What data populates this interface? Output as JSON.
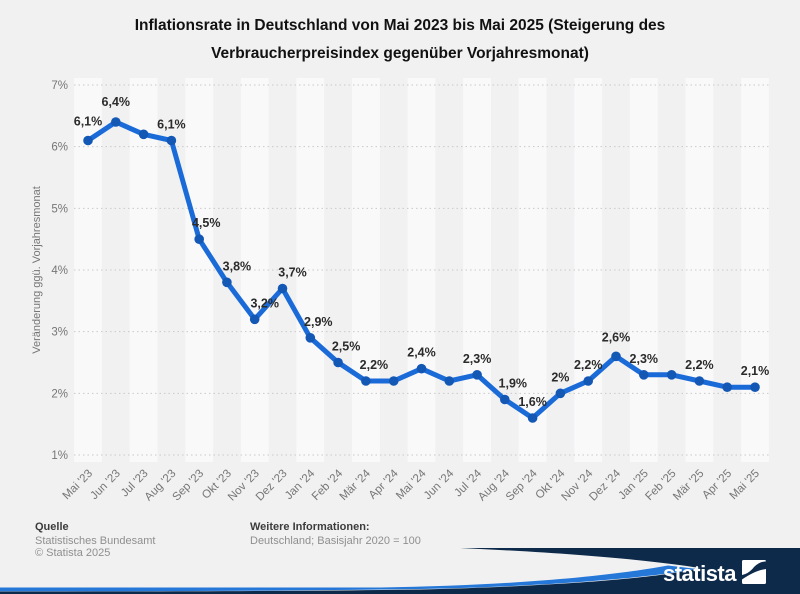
{
  "header": {
    "line1": "Inflationsrate in Deutschland von Mai 2023 bis Mai 2025 (Steigerung des",
    "line2": "Verbraucherpreisindex gegenüber Vorjahresmonat)"
  },
  "chart_data": {
    "type": "line",
    "title": "Inflationsrate in Deutschland von Mai 2023 bis Mai 2025 (Steigerung des Verbraucherpreisindex gegenüber Vorjahresmonat)",
    "xlabel": "",
    "ylabel": "Veränderung ggü. Vorjahresmonat",
    "ylim": [
      1,
      7
    ],
    "ytick_labels": [
      "1%",
      "2%",
      "3%",
      "4%",
      "5%",
      "6%",
      "7%"
    ],
    "grid": true,
    "grid_style": "dotted",
    "legend": false,
    "categories": [
      "Mai '23",
      "Jun '23",
      "Jul '23",
      "Aug '23",
      "Sep '23",
      "Okt '23",
      "Nov '23",
      "Dez '23",
      "Jan '24",
      "Feb '24",
      "Mär '24",
      "Apr '24",
      "Mai '24",
      "Jun '24",
      "Jul '24",
      "Aug '24",
      "Sep '24",
      "Okt '24",
      "Nov '24",
      "Dez '24",
      "Jan '25",
      "Feb '25",
      "Mär '25",
      "Apr '25",
      "Mai '25"
    ],
    "values": [
      6.1,
      6.4,
      6.2,
      6.1,
      4.5,
      3.8,
      3.2,
      3.7,
      2.9,
      2.5,
      2.2,
      2.2,
      2.4,
      2.2,
      2.3,
      1.9,
      1.6,
      2.0,
      2.2,
      2.6,
      2.3,
      2.3,
      2.2,
      2.1,
      2.1
    ],
    "point_labels": [
      "6,1%",
      "6,4%",
      "",
      "6,1%",
      "4,5%",
      "3,8%",
      "3,2%",
      "3,7%",
      "2,9%",
      "2,5%",
      "2,2%",
      "",
      "2,4%",
      "",
      "2,3%",
      "1,9%",
      "1,6%",
      "2%",
      "2,2%",
      "2,6%",
      "2,3%",
      "",
      "2,2%",
      "",
      "2,1%"
    ],
    "line_color": "#1a6bd8",
    "marker_color": "#1458b5",
    "gridline_color": "#c9c9c9",
    "band_color": "rgba(255,255,255,0.6)",
    "axis_text_color": "#767676",
    "label_text_color": "#2b2b2b"
  },
  "footer": {
    "source_heading": "Quelle",
    "source_lines": [
      "Statistisches Bundesamt",
      "© Statista 2025"
    ],
    "info_heading": "Weitere Informationen:",
    "info_lines": [
      "Deutschland; Basisjahr 2020 = 100"
    ]
  },
  "brand": {
    "logo_text": "statista",
    "bar_color": "#0d2a4b",
    "accent_color": "#2577d8"
  }
}
